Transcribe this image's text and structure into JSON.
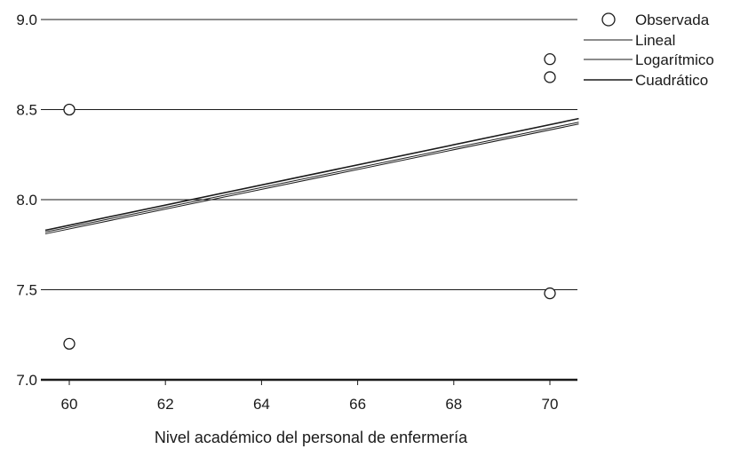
{
  "chart_data": {
    "type": "line",
    "title": "",
    "xlabel": "Nivel académico del personal de enfermería",
    "ylabel": "",
    "xlim": [
      59.5,
      70.6
    ],
    "ylim": [
      7.0,
      9.0
    ],
    "x_ticks": [
      60,
      62,
      64,
      66,
      68,
      70
    ],
    "y_ticks": [
      "7.0",
      "7.5",
      "8.0",
      "8.5",
      "9.0"
    ],
    "grid": "horizontal",
    "legend_position": "top-right",
    "observed": {
      "name": "Observada",
      "points": [
        {
          "x": 60,
          "y": 8.5
        },
        {
          "x": 60,
          "y": 7.2
        },
        {
          "x": 70,
          "y": 8.78
        },
        {
          "x": 70,
          "y": 8.68
        },
        {
          "x": 70,
          "y": 7.48
        }
      ]
    },
    "series": [
      {
        "name": "Lineal",
        "x": [
          59.5,
          70.6
        ],
        "y": [
          7.82,
          8.43
        ]
      },
      {
        "name": "Logarítmico",
        "x": [
          59.5,
          70.6
        ],
        "y": [
          7.81,
          8.42
        ]
      },
      {
        "name": "Cuadrático",
        "x": [
          59.5,
          70.6
        ],
        "y": [
          7.83,
          8.45
        ]
      }
    ],
    "colors": {
      "lines": "#1a1a1a",
      "grid": "#1a1a1a",
      "markers": "#1a1a1a"
    }
  }
}
